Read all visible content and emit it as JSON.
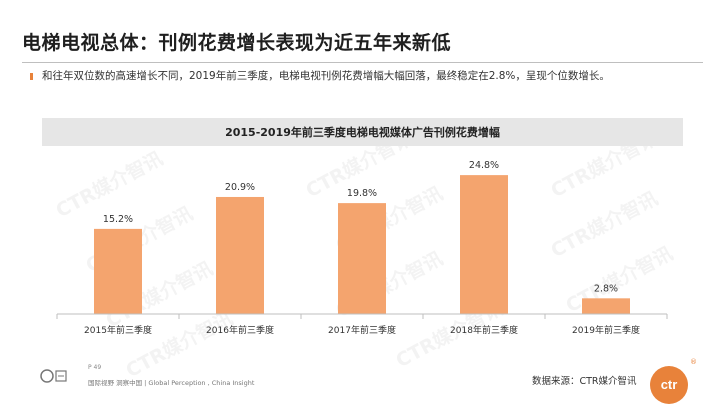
{
  "header": {
    "title": "电梯电视总体：刊例花费增长表现为近五年来新低",
    "subtitle": "和往年双位数的高速增长不同，2019年前三季度，电梯电视刊例花费增幅大幅回落，最终稳定在2.8%，呈现个位数增长。"
  },
  "chart_data": {
    "type": "bar",
    "title": "2015-2019年前三季度电梯电视媒体广告刊例花费增幅",
    "categories": [
      "2015年前三季度",
      "2016年前三季度",
      "2017年前三季度",
      "2018年前三季度",
      "2019年前三季度"
    ],
    "values": [
      15.2,
      20.9,
      19.8,
      24.8,
      2.8
    ],
    "data_labels": [
      "15.2%",
      "20.9%",
      "19.8%",
      "24.8%",
      "2.8%"
    ],
    "xlabel": "",
    "ylabel": "",
    "ylim": [
      0,
      30
    ],
    "grid": false,
    "bar_color": "#f4a46e"
  },
  "watermarks": [
    "CTR媒介智讯",
    "CTR媒介智讯",
    "CTR媒介智讯",
    "CTR媒介智讯",
    "CTR媒介智讯",
    "CTR媒介智讯",
    "CTR媒介智讯",
    "CTR媒介智讯",
    "CTR媒介智讯",
    "CTR媒介智讯",
    "CTR媒介智讯"
  ],
  "footer": {
    "page": "P 49",
    "tagline": "国际视野 洞察中国 | Global Perception , China Insight",
    "source": "数据来源：CTR媒介智讯",
    "logo_text": "ctr",
    "logo_mark": "®"
  },
  "colors": {
    "accent": "#e8823a",
    "bar": "#f4a46e"
  }
}
